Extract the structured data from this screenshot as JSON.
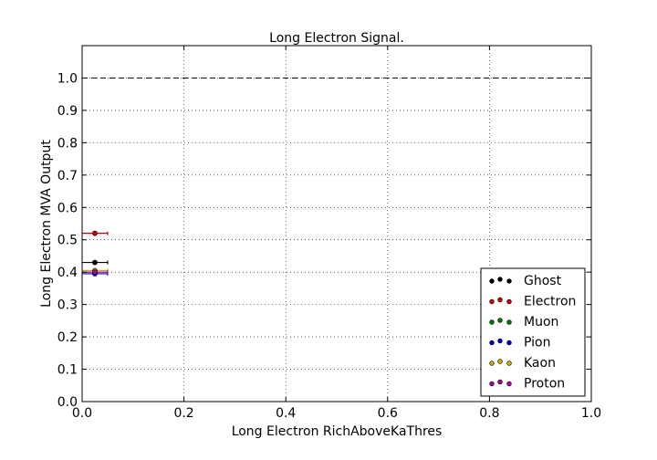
{
  "chart_data": {
    "type": "scatter",
    "title": "Long Electron Signal.",
    "xlabel": "Long Electron RichAboveKaThres",
    "ylabel": "Long Electron MVA Output",
    "xlim": [
      0.0,
      1.0
    ],
    "ylim": [
      0.0,
      1.1
    ],
    "xticks": [
      "0.0",
      "0.2",
      "0.4",
      "0.6",
      "0.8",
      "1.0"
    ],
    "yticks": [
      "0.0",
      "0.1",
      "0.2",
      "0.3",
      "0.4",
      "0.5",
      "0.6",
      "0.7",
      "0.8",
      "0.9",
      "1.0"
    ],
    "grid": true,
    "reference_line_y": 1.0,
    "legend_position": "lower-right",
    "series": [
      {
        "name": "Ghost",
        "color": "#000000",
        "points": [
          {
            "x": 0.025,
            "y": 0.43,
            "xerr": 0.025
          }
        ]
      },
      {
        "name": "Electron",
        "color": "#cc0000",
        "points": [
          {
            "x": 0.025,
            "y": 0.52,
            "xerr": 0.025
          }
        ]
      },
      {
        "name": "Muon",
        "color": "#007a00",
        "points": [
          {
            "x": 0.025,
            "y": 0.4,
            "xerr": 0.025
          }
        ]
      },
      {
        "name": "Pion",
        "color": "#0000cc",
        "points": [
          {
            "x": 0.025,
            "y": 0.395,
            "xerr": 0.025
          }
        ]
      },
      {
        "name": "Kaon",
        "color": "#ccaa00",
        "points": [
          {
            "x": 0.025,
            "y": 0.405,
            "xerr": 0.025
          }
        ]
      },
      {
        "name": "Proton",
        "color": "#aa00aa",
        "points": [
          {
            "x": 0.025,
            "y": 0.4,
            "xerr": 0.025
          }
        ]
      }
    ]
  }
}
